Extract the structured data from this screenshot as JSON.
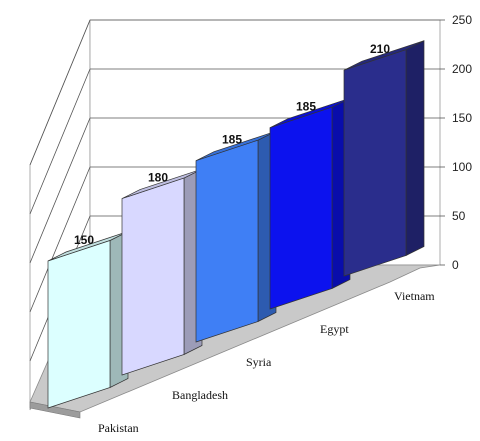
{
  "chart_data": {
    "type": "bar",
    "style": "3d-column",
    "categories": [
      "Pakistan",
      "Bangladesh",
      "Syria",
      "Egypt",
      "Vietnam"
    ],
    "values": [
      150,
      180,
      185,
      185,
      210
    ],
    "data_labels": [
      "150",
      "180",
      "185",
      "185",
      "210"
    ],
    "ylim": [
      0,
      250
    ],
    "yticks": [
      "0",
      "50",
      "100",
      "150",
      "200",
      "250"
    ],
    "grid": true,
    "legend": "none",
    "title": "",
    "xlabel": "",
    "ylabel": "",
    "colors": [
      "#dcffff",
      "#d8d8ff",
      "#3f7ff5",
      "#0c12ee",
      "#2a2d8c"
    ]
  }
}
